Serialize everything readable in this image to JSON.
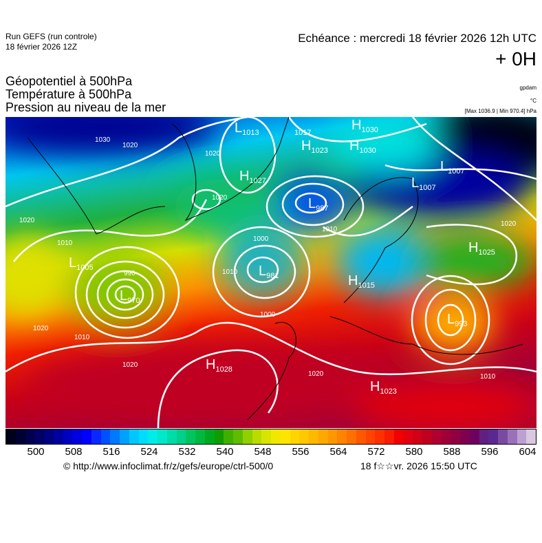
{
  "header": {
    "run": "Run GEFS (run controle)",
    "run_date": "18 février 2026 12Z",
    "echeance": "Echéance : mercredi 18 février 2026 12h UTC",
    "offset": "+ 0H",
    "titles": [
      "Géopotentiel à 500hPa",
      "Température à 500hPa",
      "Pression au niveau de la mer"
    ],
    "units": [
      "gpdam",
      "°C",
      "[Max 1036.9 | Min 970.4] hPa"
    ]
  },
  "systems": [
    {
      "type": "L",
      "value": "1013"
    },
    {
      "type": "",
      "value": "1017"
    },
    {
      "type": "H",
      "value": "1030"
    },
    {
      "type": "H",
      "value": "1023"
    },
    {
      "type": "H",
      "value": "1030"
    },
    {
      "type": "H",
      "value": "1027"
    },
    {
      "type": "L",
      "value": "987"
    },
    {
      "type": "L",
      "value": "1007"
    },
    {
      "type": "L",
      "value": "1007"
    },
    {
      "type": "H",
      "value": "1025"
    },
    {
      "type": "L",
      "value": "1005"
    },
    {
      "type": "L",
      "value": "970"
    },
    {
      "type": "L",
      "value": "981"
    },
    {
      "type": "H",
      "value": "1015"
    },
    {
      "type": "L",
      "value": "993"
    },
    {
      "type": "H",
      "value": "1028"
    },
    {
      "type": "H",
      "value": "1023"
    }
  ],
  "isobar_labels": [
    "1020",
    "1020",
    "1020",
    "1030",
    "1010",
    "1010",
    "1000",
    "990",
    "1010",
    "1000",
    "1020",
    "1020",
    "1010",
    "1020",
    "1020",
    "1010",
    "1020"
  ],
  "colorbar": {
    "colors": [
      "#00001a",
      "#000033",
      "#00004d",
      "#000066",
      "#000080",
      "#00009f",
      "#0000c0",
      "#0000e0",
      "#0000ff",
      "#0a28ff",
      "#0050ff",
      "#0078ff",
      "#00a0ff",
      "#00c8ff",
      "#00dcff",
      "#00ece8",
      "#00e8c8",
      "#00dca8",
      "#00d088",
      "#00c460",
      "#00b840",
      "#00a820",
      "#109c00",
      "#40b000",
      "#60bc00",
      "#90d000",
      "#b8dc00",
      "#d8e400",
      "#f0e800",
      "#ffe400",
      "#ffd400",
      "#ffc800",
      "#ffb800",
      "#ffa800",
      "#ff9800",
      "#ff8400",
      "#ff7000",
      "#ff5800",
      "#ff4400",
      "#ff3000",
      "#f81c00",
      "#f00000",
      "#e00010",
      "#d00018",
      "#c00020",
      "#b00030",
      "#a00038",
      "#900040",
      "#800050",
      "#700060",
      "#602080",
      "#5a2890",
      "#7a4aa0",
      "#9a70b8",
      "#bca0d4",
      "#d8c8e0"
    ],
    "ticks": [
      "500",
      "508",
      "516",
      "524",
      "532",
      "540",
      "548",
      "556",
      "564",
      "572",
      "580",
      "588",
      "596",
      "604"
    ]
  },
  "footer": {
    "copyright": "© http://www.infoclimat.fr/z/gefs/europe/ctrl-500/0",
    "generated": "18 f☆☆vr. 2026 15:50 UTC"
  }
}
